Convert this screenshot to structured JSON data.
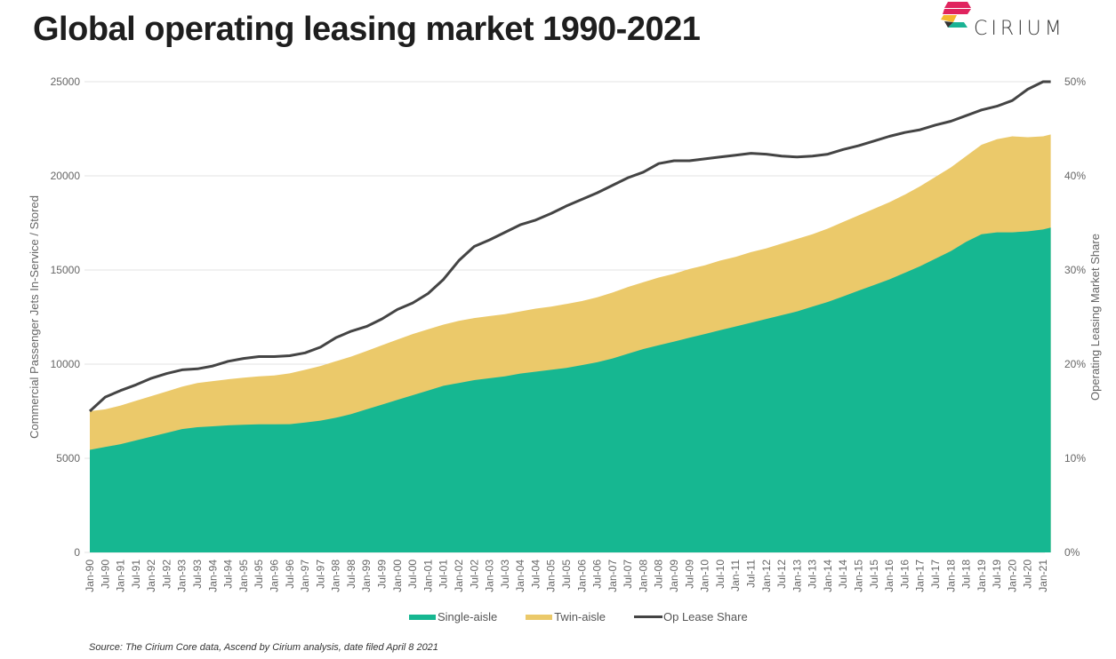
{
  "page": {
    "title": "Global operating leasing market 1990-2021",
    "logo_text": "CIRIUM",
    "source": "Source: The Cirium Core data, Ascend by Cirium analysis, date filed April 8 2021"
  },
  "colors": {
    "single_aisle": "#16b791",
    "twin_aisle": "#ebc96a",
    "op_lease_share": "#444444",
    "grid": "#e3e3e3",
    "logo_red": "#e0245e",
    "logo_yellow": "#f5b82e",
    "logo_teal": "#1ab394",
    "logo_dark": "#333333"
  },
  "chart_data": {
    "type": "area",
    "title": "Global operating leasing market 1990-2021",
    "xlabel": "",
    "ylabel": "Commercial Passenger Jets In-Service / Stored",
    "y2label": "Operating Leasing Market Share",
    "ylim": [
      0,
      25000
    ],
    "y2lim": [
      0,
      0.5
    ],
    "yticks": [
      "0",
      "5000",
      "10000",
      "15000",
      "20000",
      "25000"
    ],
    "y2ticks": [
      "0%",
      "10%",
      "20%",
      "30%",
      "40%",
      "50%"
    ],
    "grid": true,
    "legend_position": "bottom",
    "x_ticks": [
      "Jan-90",
      "Jul-90",
      "Jan-91",
      "Jul-91",
      "Jan-92",
      "Jul-92",
      "Jan-93",
      "Jul-93",
      "Jan-94",
      "Jul-94",
      "Jan-95",
      "Jul-95",
      "Jan-96",
      "Jul-96",
      "Jan-97",
      "Jul-97",
      "Jan-98",
      "Jul-98",
      "Jan-99",
      "Jul-99",
      "Jan-00",
      "Jul-00",
      "Jan-01",
      "Jul-01",
      "Jan-02",
      "Jul-02",
      "Jan-03",
      "Jul-03",
      "Jan-04",
      "Jul-04",
      "Jan-05",
      "Jul-05",
      "Jan-06",
      "Jul-06",
      "Jan-07",
      "Jul-07",
      "Jan-08",
      "Jul-08",
      "Jan-09",
      "Jul-09",
      "Jan-10",
      "Jul-10",
      "Jan-11",
      "Jul-11",
      "Jan-12",
      "Jul-12",
      "Jan-13",
      "Jul-13",
      "Jan-14",
      "Jul-14",
      "Jan-15",
      "Jul-15",
      "Jan-16",
      "Jul-16",
      "Jan-17",
      "Jul-17",
      "Jan-18",
      "Jul-18",
      "Jan-19",
      "Jul-19",
      "Jan-20",
      "Jul-20",
      "Jan-21"
    ],
    "x": [
      1990.0,
      1990.5,
      1991.0,
      1991.5,
      1992.0,
      1992.5,
      1993.0,
      1993.5,
      1994.0,
      1994.5,
      1995.0,
      1995.5,
      1996.0,
      1996.5,
      1997.0,
      1997.5,
      1998.0,
      1998.5,
      1999.0,
      1999.5,
      2000.0,
      2000.5,
      2001.0,
      2001.5,
      2002.0,
      2002.5,
      2003.0,
      2003.5,
      2004.0,
      2004.5,
      2005.0,
      2005.5,
      2006.0,
      2006.5,
      2007.0,
      2007.5,
      2008.0,
      2008.5,
      2009.0,
      2009.5,
      2010.0,
      2010.5,
      2011.0,
      2011.5,
      2012.0,
      2012.5,
      2013.0,
      2013.5,
      2014.0,
      2014.5,
      2015.0,
      2015.5,
      2016.0,
      2016.5,
      2017.0,
      2017.5,
      2018.0,
      2018.5,
      2019.0,
      2019.5,
      2020.0,
      2020.5,
      2021.0,
      2021.25
    ],
    "series": [
      {
        "name": "Single-aisle",
        "kind": "stacked-area",
        "axis": "left",
        "values": [
          5450,
          5600,
          5750,
          5950,
          6150,
          6350,
          6550,
          6650,
          6700,
          6750,
          6780,
          6800,
          6800,
          6810,
          6900,
          7000,
          7150,
          7350,
          7600,
          7850,
          8100,
          8350,
          8600,
          8850,
          9000,
          9150,
          9250,
          9350,
          9500,
          9600,
          9700,
          9800,
          9950,
          10100,
          10300,
          10550,
          10800,
          11000,
          11200,
          11400,
          11600,
          11800,
          12000,
          12200,
          12400,
          12600,
          12800,
          13050,
          13300,
          13600,
          13900,
          14200,
          14500,
          14850,
          15200,
          15600,
          16000,
          16500,
          16900,
          17000,
          17000,
          17050,
          17150,
          17250
        ]
      },
      {
        "name": "Twin-aisle",
        "kind": "stacked-area",
        "axis": "left",
        "values": [
          2050,
          2000,
          2050,
          2100,
          2150,
          2200,
          2250,
          2350,
          2400,
          2450,
          2500,
          2550,
          2600,
          2700,
          2800,
          2900,
          3000,
          3050,
          3100,
          3150,
          3200,
          3250,
          3250,
          3250,
          3300,
          3300,
          3300,
          3300,
          3300,
          3350,
          3350,
          3400,
          3400,
          3450,
          3500,
          3550,
          3550,
          3600,
          3600,
          3650,
          3650,
          3700,
          3700,
          3750,
          3750,
          3800,
          3850,
          3850,
          3900,
          3950,
          4000,
          4050,
          4100,
          4150,
          4250,
          4350,
          4450,
          4550,
          4750,
          4950,
          5100,
          5000,
          4950,
          4950
        ]
      },
      {
        "name": "Op Lease Share",
        "kind": "line",
        "axis": "right",
        "values": [
          0.15,
          0.165,
          0.172,
          0.178,
          0.185,
          0.19,
          0.194,
          0.195,
          0.198,
          0.203,
          0.206,
          0.208,
          0.208,
          0.209,
          0.212,
          0.218,
          0.228,
          0.235,
          0.24,
          0.248,
          0.258,
          0.265,
          0.275,
          0.29,
          0.31,
          0.325,
          0.332,
          0.34,
          0.348,
          0.353,
          0.36,
          0.368,
          0.375,
          0.382,
          0.39,
          0.398,
          0.404,
          0.413,
          0.416,
          0.416,
          0.418,
          0.42,
          0.422,
          0.424,
          0.423,
          0.421,
          0.42,
          0.421,
          0.423,
          0.428,
          0.432,
          0.437,
          0.442,
          0.446,
          0.449,
          0.454,
          0.458,
          0.464,
          0.47,
          0.474,
          0.48,
          0.492,
          0.5,
          0.5
        ]
      }
    ],
    "legend": [
      "Single-aisle",
      "Twin-aisle",
      "Op Lease Share"
    ]
  }
}
